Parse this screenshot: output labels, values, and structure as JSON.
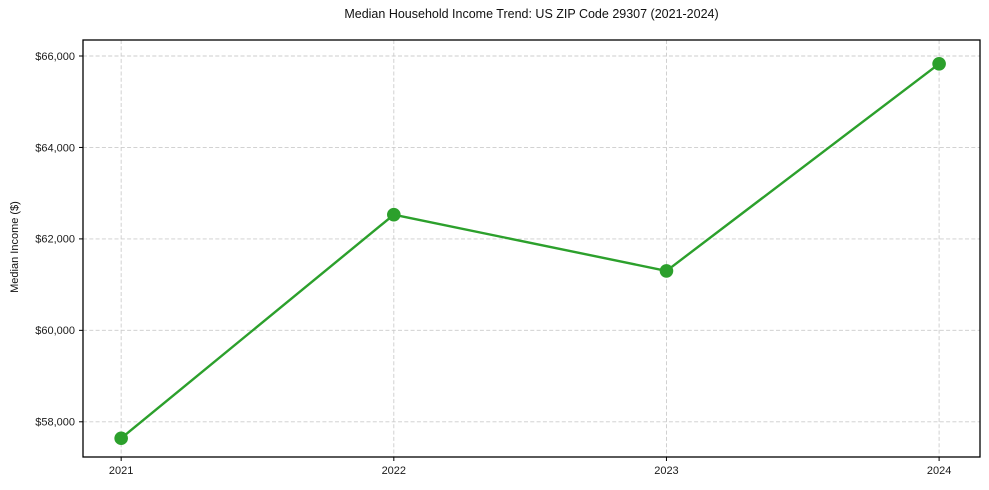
{
  "chart_data": {
    "type": "line",
    "title": "Median Household Income Trend: US ZIP Code 29307 (2021-2024)",
    "xlabel": "",
    "ylabel": "Median Income ($)",
    "x": [
      2021,
      2022,
      2023,
      2024
    ],
    "values": [
      57640,
      62530,
      61300,
      65830
    ],
    "series_name": "Median Household Income",
    "x_tick_labels": [
      "2021",
      "2022",
      "2023",
      "2024"
    ],
    "y_ticks": [
      58000,
      60000,
      62000,
      64000,
      66000
    ],
    "y_tick_labels": [
      "$58,000",
      "$60,000",
      "$62,000",
      "$64,000",
      "$66,000"
    ],
    "xlim": [
      2020.86,
      2024.15
    ],
    "ylim": [
      57230,
      66350
    ],
    "grid": true,
    "grid_style": "dashed",
    "legend_position": "none",
    "line_color": "#2ca02c",
    "marker": "circle",
    "marker_color": "#2ca02c",
    "grid_color": "#cccccc",
    "axis_color": "#000000",
    "background_color": "#ffffff"
  }
}
